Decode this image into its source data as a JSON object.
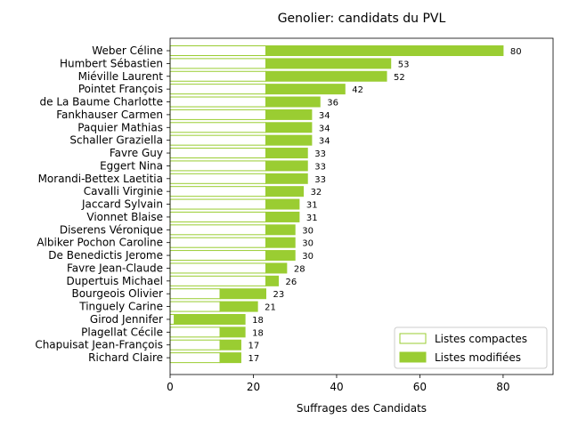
{
  "chart_data": {
    "type": "bar",
    "orientation": "horizontal",
    "stacked": true,
    "title": "Genolier: candidats du PVL",
    "xlabel": "Suffrages des Candidats",
    "ylabel": "",
    "xlim": [
      0,
      92
    ],
    "xticks": [
      0,
      20,
      40,
      60,
      80
    ],
    "grid": false,
    "legend_position": "lower-right",
    "colors": {
      "accent": "#9acd32",
      "compact_fill": "#ffffff",
      "compact_edge": "#9acd32"
    },
    "categories": [
      "Weber Céline",
      "Humbert Sébastien",
      "Miéville Laurent",
      "Pointet François",
      "de La Baume Charlotte",
      "Fankhauser Carmen",
      "Paquier Mathias",
      "Schaller Graziella",
      "Favre Guy",
      "Eggert Nina",
      "Morandi-Bettex Laetitia",
      "Cavalli Virginie",
      "Jaccard Sylvain",
      "Vionnet Blaise",
      "Diserens Véronique",
      "Albiker Pochon Caroline",
      "De Benedictis Jerome",
      "Favre Jean-Claude",
      "Dupertuis Michael",
      "Bourgeois Olivier",
      "Tinguely Carine",
      "Girod Jennifer",
      "Plagellat Cécile",
      "Chapuisat Jean-François",
      "Richard Claire"
    ],
    "series": [
      {
        "name": "Listes compactes",
        "values": [
          23,
          23,
          23,
          23,
          23,
          23,
          23,
          23,
          23,
          23,
          23,
          23,
          23,
          23,
          23,
          23,
          23,
          23,
          23,
          12,
          12,
          1,
          12,
          12,
          12
        ]
      },
      {
        "name": "Listes modifiées",
        "values": [
          57,
          30,
          29,
          19,
          13,
          11,
          11,
          11,
          10,
          10,
          10,
          9,
          8,
          8,
          7,
          7,
          7,
          5,
          3,
          11,
          9,
          17,
          6,
          5,
          5
        ]
      }
    ],
    "totals": [
      80,
      53,
      52,
      42,
      36,
      34,
      34,
      34,
      33,
      33,
      33,
      32,
      31,
      31,
      30,
      30,
      30,
      28,
      26,
      23,
      21,
      18,
      18,
      17,
      17
    ],
    "total_labels": [
      "80",
      "53",
      "52",
      "42",
      "36",
      "34",
      "34",
      "34",
      "33",
      "33",
      "33",
      "32",
      "31",
      "31",
      "30",
      "30",
      "30",
      "28",
      "26",
      "23",
      "21",
      "18",
      "18",
      "17",
      "17"
    ]
  }
}
